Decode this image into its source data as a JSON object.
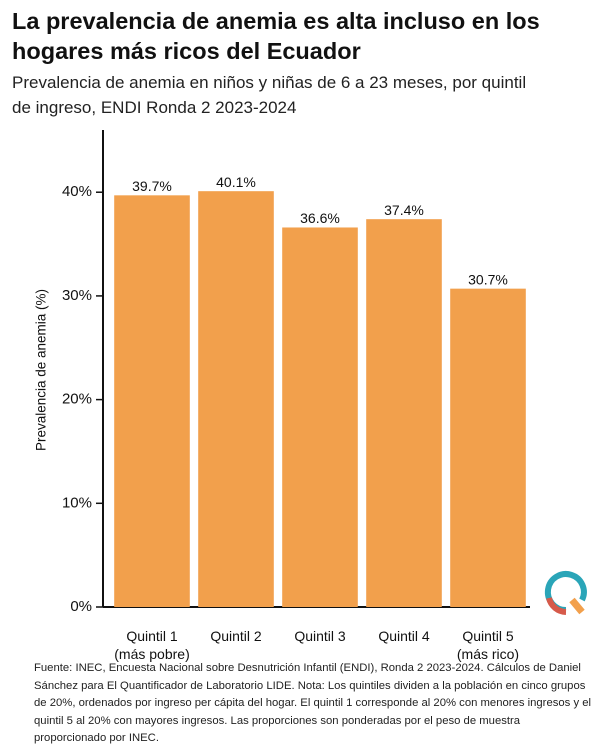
{
  "chart_data": {
    "type": "bar",
    "title": "La prevalencia de anemia es alta incluso en los hogares más ricos del Ecuador",
    "subtitle": "Prevalencia de anemia en niños y niñas de 6 a 23 meses, por quintil de ingreso, ENDI Ronda 2 2023-2024",
    "ylabel": "Prevalencia de anemia (%)",
    "categories": [
      "Quintil 1\n(más pobre)",
      "Quintil 2",
      "Quintil 3",
      "Quintil 4",
      "Quintil 5\n(más rico)"
    ],
    "values": [
      39.7,
      40.1,
      36.6,
      37.4,
      30.7
    ],
    "value_labels": [
      "39.7%",
      "40.1%",
      "36.6%",
      "37.4%",
      "30.7%"
    ],
    "color": "#f2a04c",
    "ylim": [
      0,
      46
    ],
    "yticks": [
      {
        "value": 0,
        "label": "0%"
      },
      {
        "value": 10,
        "label": "10%"
      },
      {
        "value": 20,
        "label": "20%"
      },
      {
        "value": 30,
        "label": "30%"
      },
      {
        "value": 40,
        "label": "40%"
      }
    ],
    "grid": false,
    "footnote": "Fuente: INEC, Encuesta Nacional sobre Desnutrición Infantil (ENDI), Ronda 2 2023-2024. Cálculos de Daniel Sánchez para El Quantificador de Laboratorio LIDE. Nota: Los quintiles dividen a la población en cinco grupos de 20%, ordenados por ingreso per cápita del hogar. El quintil 1 corresponde al 20% con menores ingresos y el quintil 5 al 20% con mayores ingresos. Las proporciones son ponderadas por el peso de muestra proporcionado por INEC."
  }
}
